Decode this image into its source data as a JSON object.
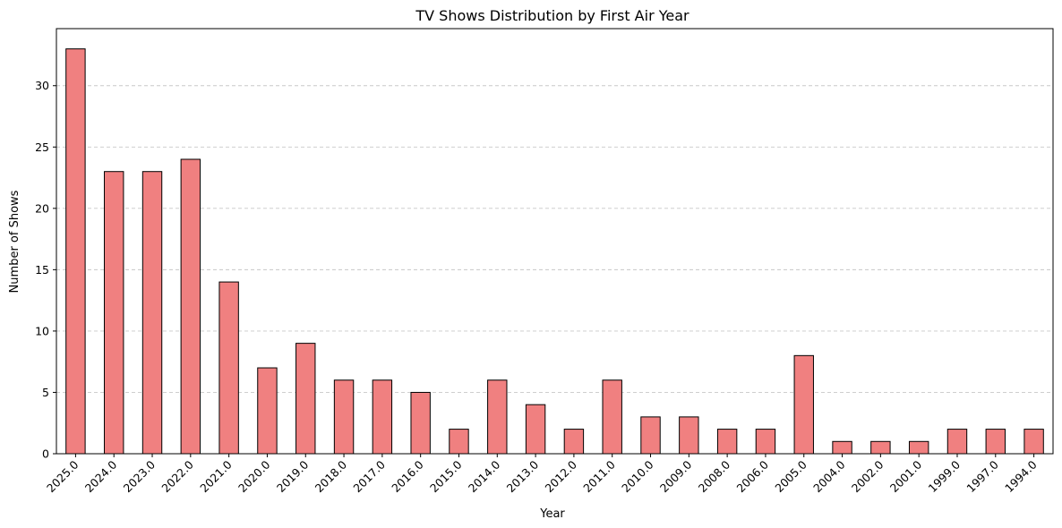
{
  "chart_data": {
    "type": "bar",
    "title": "TV Shows Distribution by First Air Year",
    "xlabel": "Year",
    "ylabel": "Number of Shows",
    "categories": [
      "2025.0",
      "2024.0",
      "2023.0",
      "2022.0",
      "2021.0",
      "2020.0",
      "2019.0",
      "2018.0",
      "2017.0",
      "2016.0",
      "2015.0",
      "2014.0",
      "2013.0",
      "2012.0",
      "2011.0",
      "2010.0",
      "2009.0",
      "2008.0",
      "2006.0",
      "2005.0",
      "2004.0",
      "2002.0",
      "2001.0",
      "1999.0",
      "1997.0",
      "1994.0"
    ],
    "values": [
      33,
      23,
      23,
      24,
      14,
      7,
      9,
      6,
      6,
      5,
      2,
      6,
      4,
      2,
      6,
      3,
      3,
      2,
      2,
      8,
      1,
      1,
      1,
      2,
      2,
      2
    ],
    "ylim": [
      0,
      34.65
    ],
    "yticks": [
      0,
      5,
      10,
      15,
      20,
      25,
      30
    ],
    "grid": "y-dashed",
    "bar_color": "#f08080",
    "edge_color": "#000000"
  }
}
